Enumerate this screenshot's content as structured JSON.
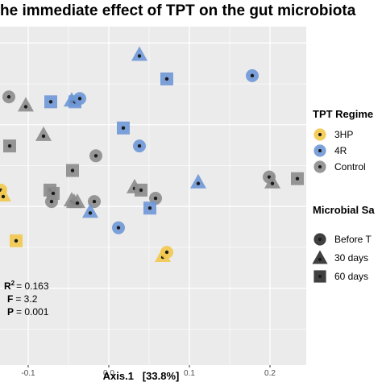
{
  "chart_data": {
    "type": "scatter",
    "title": "he immediate effect of TPT on the gut microbiota",
    "xlabel": "Axis.1   [33.8%]",
    "ylabel": "",
    "xlim": [
      -0.135,
      0.245
    ],
    "ylim": [
      -0.97,
      1.1
    ],
    "x_ticks": [
      {
        "value": -0.1,
        "label": "-0.1"
      },
      {
        "value": 0.0,
        "label": "0.0"
      },
      {
        "value": 0.1,
        "label": "0.1"
      },
      {
        "value": 0.2,
        "label": "0.2"
      }
    ],
    "grid": true,
    "background": "#ebebeb",
    "colors": {
      "3HP": "#f2c94c",
      "4R": "#6f97d6",
      "Control": "#8c8c8c"
    },
    "stats": [
      {
        "label": "R",
        "sup": "2",
        "value": "= 0.163"
      },
      {
        "label": "F",
        "sup": "",
        "value": "= 3.2"
      },
      {
        "label": "P",
        "sup": "",
        "value": "= 0.001"
      }
    ],
    "legend_placement": "right",
    "legends": [
      {
        "title": "TPT Regime",
        "kind": "color",
        "items": [
          {
            "label": "3HP",
            "color": "#f2c94c"
          },
          {
            "label": "4R",
            "color": "#6f97d6"
          },
          {
            "label": "Control",
            "color": "#8c8c8c"
          }
        ]
      },
      {
        "title": "Microbial Sa",
        "kind": "shape",
        "items": [
          {
            "label": "Before T",
            "shape": "circle"
          },
          {
            "label": "30 days",
            "shape": "triangle"
          },
          {
            "label": "60 days",
            "shape": "square"
          }
        ]
      }
    ],
    "points": [
      {
        "x": 0.038,
        "y": 0.93,
        "group": "4R",
        "shape": "triangle"
      },
      {
        "x": 0.178,
        "y": 0.8,
        "group": "4R",
        "shape": "circle"
      },
      {
        "x": 0.072,
        "y": 0.78,
        "group": "4R",
        "shape": "square"
      },
      {
        "x": -0.046,
        "y": 0.65,
        "group": "4R",
        "shape": "triangle"
      },
      {
        "x": -0.072,
        "y": 0.64,
        "group": "4R",
        "shape": "square"
      },
      {
        "x": -0.042,
        "y": 0.64,
        "group": "4R",
        "shape": "square"
      },
      {
        "x": -0.036,
        "y": 0.66,
        "group": "4R",
        "shape": "circle"
      },
      {
        "x": 0.018,
        "y": 0.48,
        "group": "4R",
        "shape": "square"
      },
      {
        "x": 0.038,
        "y": 0.37,
        "group": "4R",
        "shape": "circle"
      },
      {
        "x": 0.111,
        "y": 0.15,
        "group": "4R",
        "shape": "triangle"
      },
      {
        "x": -0.023,
        "y": -0.03,
        "group": "4R",
        "shape": "triangle"
      },
      {
        "x": 0.051,
        "y": -0.01,
        "group": "4R",
        "shape": "square"
      },
      {
        "x": 0.012,
        "y": -0.13,
        "group": "4R",
        "shape": "circle"
      },
      {
        "x": -0.124,
        "y": 0.67,
        "group": "Control",
        "shape": "circle"
      },
      {
        "x": -0.103,
        "y": 0.62,
        "group": "Control",
        "shape": "triangle"
      },
      {
        "x": -0.081,
        "y": 0.44,
        "group": "Control",
        "shape": "triangle"
      },
      {
        "x": -0.123,
        "y": 0.37,
        "group": "Control",
        "shape": "square"
      },
      {
        "x": -0.016,
        "y": 0.31,
        "group": "Control",
        "shape": "circle"
      },
      {
        "x": -0.045,
        "y": 0.22,
        "group": "Control",
        "shape": "square"
      },
      {
        "x": -0.073,
        "y": 0.1,
        "group": "Control",
        "shape": "square"
      },
      {
        "x": -0.069,
        "y": 0.08,
        "group": "Control",
        "shape": "square"
      },
      {
        "x": -0.071,
        "y": 0.03,
        "group": "Control",
        "shape": "circle"
      },
      {
        "x": -0.046,
        "y": 0.04,
        "group": "Control",
        "shape": "triangle"
      },
      {
        "x": -0.043,
        "y": 0.03,
        "group": "Control",
        "shape": "triangle"
      },
      {
        "x": -0.039,
        "y": 0.03,
        "group": "Control",
        "shape": "triangle"
      },
      {
        "x": -0.018,
        "y": 0.03,
        "group": "Control",
        "shape": "circle"
      },
      {
        "x": 0.032,
        "y": 0.12,
        "group": "Control",
        "shape": "triangle"
      },
      {
        "x": 0.04,
        "y": 0.1,
        "group": "Control",
        "shape": "square"
      },
      {
        "x": 0.058,
        "y": 0.05,
        "group": "Control",
        "shape": "circle"
      },
      {
        "x": 0.199,
        "y": 0.18,
        "group": "Control",
        "shape": "circle"
      },
      {
        "x": 0.203,
        "y": 0.15,
        "group": "Control",
        "shape": "triangle"
      },
      {
        "x": 0.234,
        "y": 0.17,
        "group": "Control",
        "shape": "square"
      },
      {
        "x": -0.134,
        "y": 0.1,
        "group": "3HP",
        "shape": "circle"
      },
      {
        "x": -0.131,
        "y": 0.07,
        "group": "3HP",
        "shape": "triangle"
      },
      {
        "x": -0.115,
        "y": -0.21,
        "group": "3HP",
        "shape": "square"
      },
      {
        "x": 0.067,
        "y": -0.3,
        "group": "3HP",
        "shape": "triangle"
      },
      {
        "x": 0.072,
        "y": -0.28,
        "group": "3HP",
        "shape": "circle"
      }
    ]
  }
}
